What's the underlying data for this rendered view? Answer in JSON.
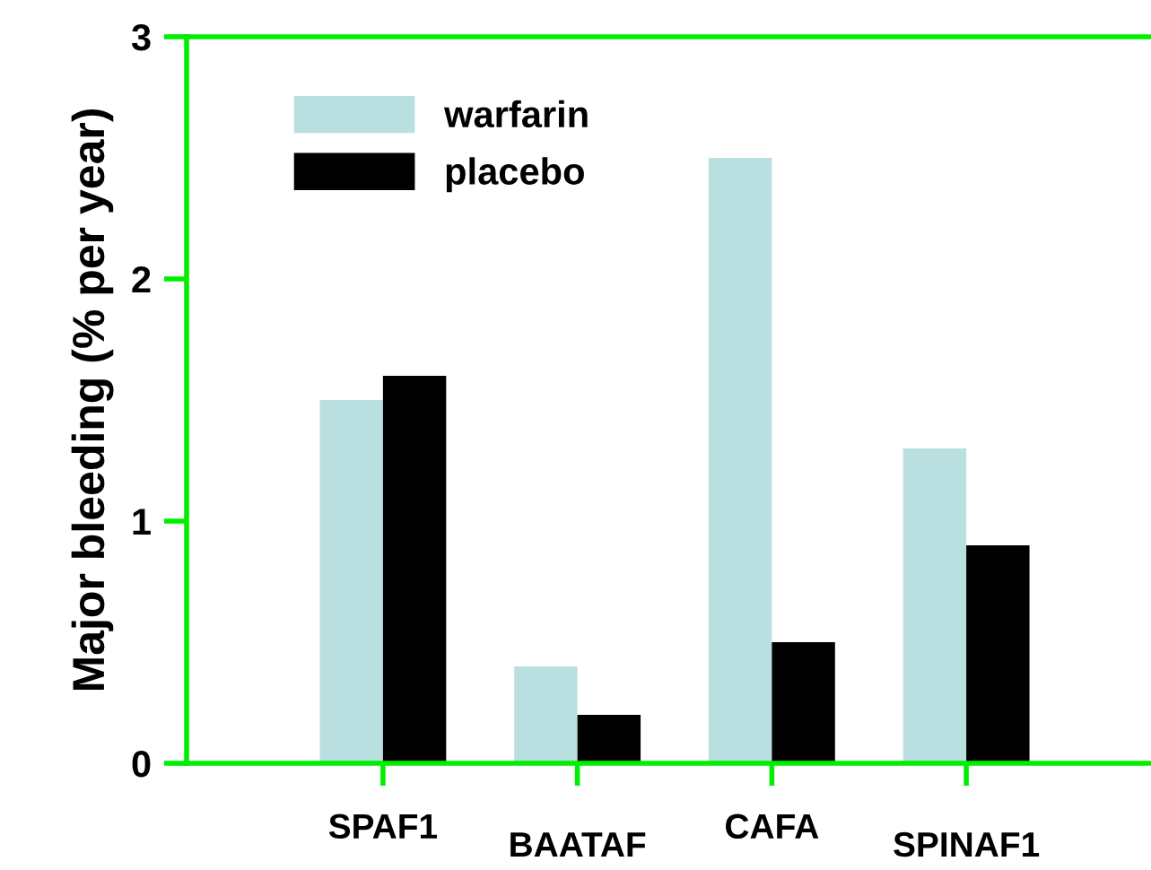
{
  "chart_data": {
    "type": "bar",
    "ylabel": "Major bleeding (% per year)",
    "categories": [
      "SPAF1",
      "BAATAF",
      "CAFA",
      "SPINAF1"
    ],
    "series": [
      {
        "name": "warfarin",
        "color": "#b9dfe1",
        "values": [
          1.5,
          0.4,
          2.5,
          1.3
        ]
      },
      {
        "name": "placebo",
        "color": "#000000",
        "values": [
          1.6,
          0.2,
          0.5,
          0.9
        ]
      }
    ],
    "ylim": [
      0,
      3
    ],
    "yticks": [
      0,
      1,
      2,
      3
    ],
    "grid": false,
    "legend": "top left"
  }
}
